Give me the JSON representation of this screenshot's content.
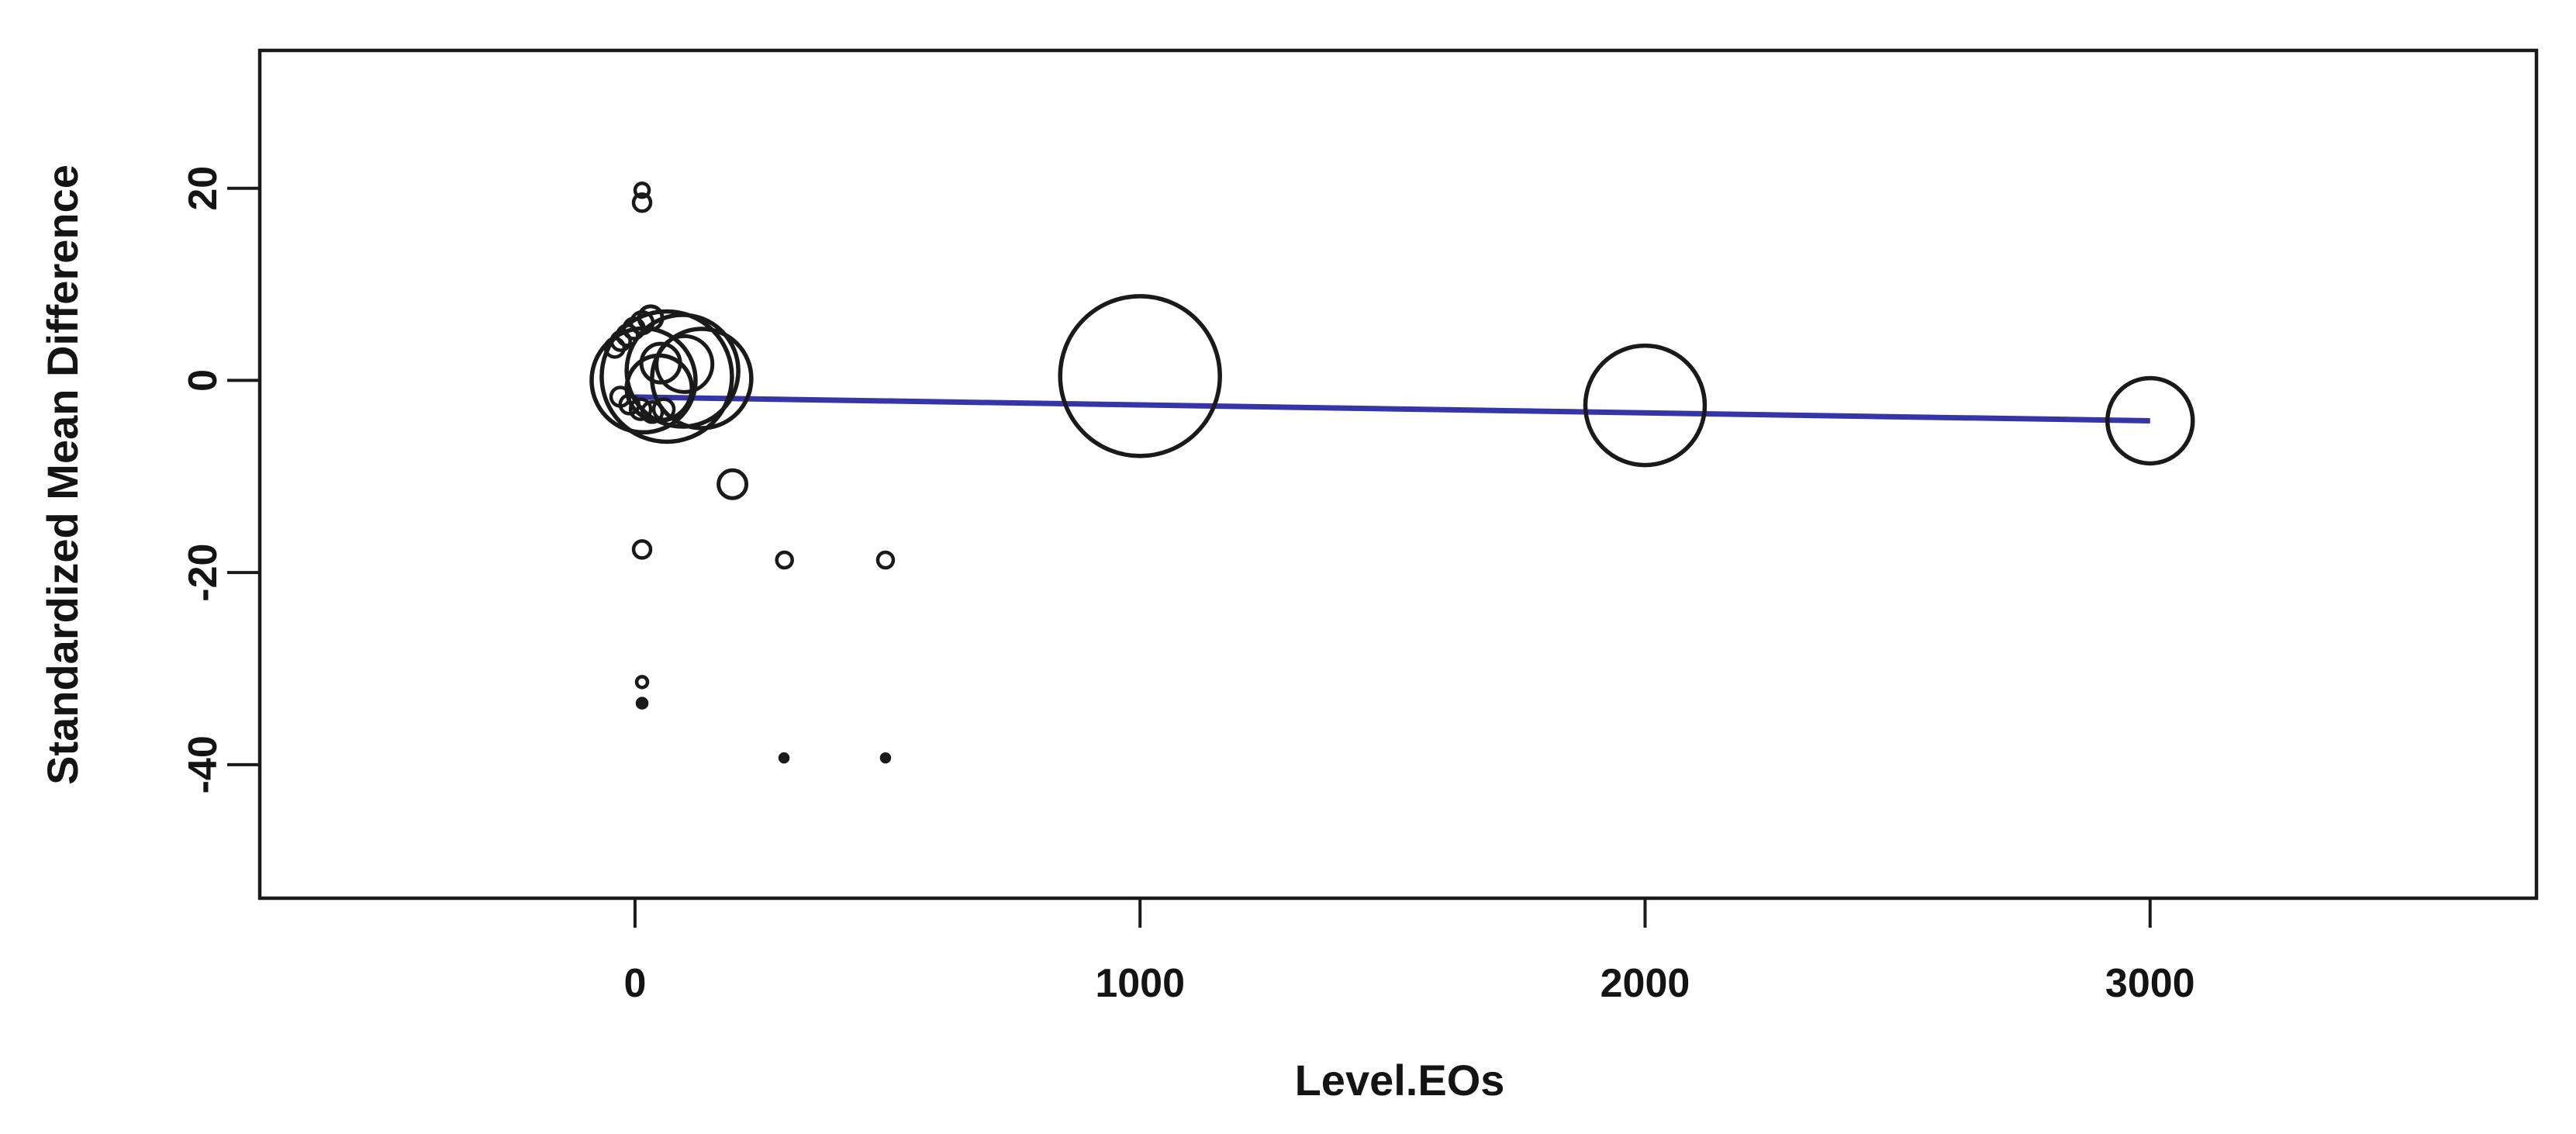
{
  "figure": {
    "background": "#ffffff"
  },
  "chart_data": {
    "type": "scatter",
    "subtype": "bubble-meta-regression",
    "title": "",
    "xlabel": "Level.EOs",
    "ylabel": "Standardized Mean Difference",
    "xlim": [
      -743,
      3765
    ],
    "ylim": [
      -53.9,
      34.35
    ],
    "x_ticks": [
      0,
      1000,
      2000,
      3000
    ],
    "y_ticks": [
      20,
      0,
      -20,
      -40
    ],
    "grid": false,
    "legend": "none",
    "bubble_color": "#1a1a1a",
    "axis_color": "#1a1a1a",
    "points": [
      {
        "x": 17,
        "y": 0.0,
        "r": 67
      },
      {
        "x": 63,
        "y": 0.4,
        "r": 84
      },
      {
        "x": 132,
        "y": 0.2,
        "r": 64
      },
      {
        "x": 94,
        "y": 1.0,
        "r": 72
      },
      {
        "x": 48,
        "y": -0.8,
        "r": 42
      },
      {
        "x": 98,
        "y": 1.7,
        "r": 36
      },
      {
        "x": 51,
        "y": 1.8,
        "r": 25
      },
      {
        "x": -40,
        "y": 3.4,
        "r": 12
      },
      {
        "x": -28,
        "y": 4.1,
        "r": 12
      },
      {
        "x": -15,
        "y": 4.7,
        "r": 13
      },
      {
        "x": -2,
        "y": 5.4,
        "r": 13
      },
      {
        "x": 14,
        "y": 6.0,
        "r": 14
      },
      {
        "x": 31,
        "y": 6.5,
        "r": 15
      },
      {
        "x": -29,
        "y": -1.7,
        "r": 12
      },
      {
        "x": -11,
        "y": -2.5,
        "r": 12
      },
      {
        "x": 11,
        "y": -3.0,
        "r": 13
      },
      {
        "x": 34,
        "y": -3.3,
        "r": 13
      },
      {
        "x": 57,
        "y": -3.0,
        "r": 13
      },
      {
        "x": 14,
        "y": 19.8,
        "r": 9
      },
      {
        "x": 14,
        "y": 18.5,
        "r": 11
      },
      {
        "x": 193,
        "y": -10.8,
        "r": 18
      },
      {
        "x": 14,
        "y": -17.6,
        "r": 11
      },
      {
        "x": 296,
        "y": -18.7,
        "r": 10
      },
      {
        "x": 496,
        "y": -18.7,
        "r": 10
      },
      {
        "x": 14,
        "y": -31.4,
        "r": 7
      },
      {
        "x": 14,
        "y": -33.6,
        "r": 6
      },
      {
        "x": 295,
        "y": -39.3,
        "r": 5
      },
      {
        "x": 496,
        "y": -39.3,
        "r": 5
      },
      {
        "x": 1000,
        "y": 0.45,
        "r": 103
      },
      {
        "x": 2000,
        "y": -2.6,
        "r": 77
      },
      {
        "x": 3000,
        "y": -4.2,
        "r": 55
      }
    ],
    "regression_line": {
      "x1": 0,
      "y1": -1.73,
      "x2": 3000,
      "y2": -4.2,
      "color": "#3535a8"
    }
  }
}
